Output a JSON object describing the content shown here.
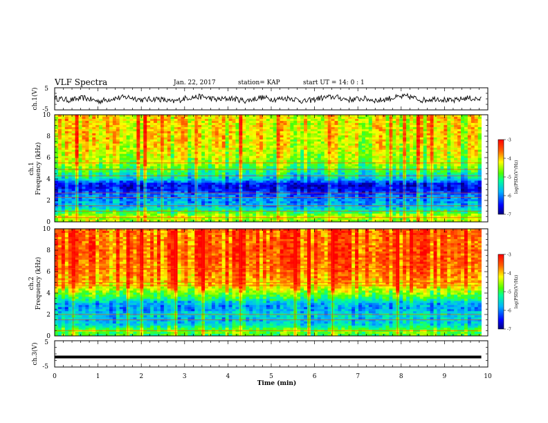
{
  "header": {
    "title": "VLF Spectra",
    "date": "Jan. 22, 2017",
    "station": "station= KAP",
    "start_ut": "start  UT =   14: 0  : 1"
  },
  "chart_data": [
    {
      "type": "line",
      "panel": "ch1-waveform",
      "ylabel": "ch.1(V)",
      "ylim": [
        -5,
        5
      ],
      "yticks": [
        "5",
        "-5"
      ],
      "xlim": [
        0,
        10
      ],
      "series": [
        {
          "values": [
            0.3,
            -0.6,
            0.4,
            -1.1,
            0.2,
            0.8,
            -0.5,
            0.1,
            -1.4,
            0.5,
            1.0,
            -0.3,
            0.2,
            -0.9,
            0.6,
            -0.2,
            0.4,
            -1.2,
            0.3,
            0.9,
            -0.4,
            0.1,
            -0.8,
            0.5,
            1.1,
            -0.6,
            0.2,
            -1.0,
            0.4,
            -0.3
          ]
        }
      ]
    },
    {
      "type": "heatmap",
      "panel": "ch1-spectrogram",
      "ylabel": "ch.1",
      "ylabel2": "Frequency (kHz)",
      "ylim": [
        0,
        10
      ],
      "yticks": [
        "0",
        "2",
        "4",
        "6",
        "8",
        "10"
      ],
      "xlim": [
        0,
        10
      ],
      "colorbar": {
        "ticks": [
          "-3",
          "-4",
          "-5",
          "-6",
          "-7"
        ],
        "label": "log(PSD)(V²/Hz)",
        "range": [
          -7,
          -3
        ]
      },
      "freq_profile_kHz": [
        [
          0,
          -4.6
        ],
        [
          0.5,
          -4.4
        ],
        [
          1.0,
          -5.2
        ],
        [
          1.5,
          -5.8
        ],
        [
          2.0,
          -5.9
        ],
        [
          2.5,
          -6.1
        ],
        [
          3.0,
          -6.5
        ],
        [
          3.5,
          -6.6
        ],
        [
          4.0,
          -5.6
        ],
        [
          4.5,
          -5.3
        ],
        [
          5.0,
          -4.9
        ],
        [
          5.5,
          -4.6
        ],
        [
          6.0,
          -4.5
        ],
        [
          7.0,
          -4.3
        ],
        [
          8.0,
          -4.2
        ],
        [
          9.0,
          -4.2
        ],
        [
          10.0,
          -4.2
        ]
      ],
      "horizontal_lines_kHz": [
        0.4,
        1.0,
        1.5,
        2.3,
        2.7,
        4.3,
        4.9,
        5.5
      ]
    },
    {
      "type": "heatmap",
      "panel": "ch2-spectrogram",
      "ylabel": "ch.2",
      "ylabel2": "Frequency (kHz)",
      "ylim": [
        0,
        10
      ],
      "yticks": [
        "0",
        "2",
        "4",
        "6",
        "8",
        "10"
      ],
      "xlim": [
        0,
        10
      ],
      "colorbar": {
        "ticks": [
          "-3",
          "-4",
          "-5",
          "-6",
          "-7"
        ],
        "label": "log(PSD)(V²/Hz)",
        "range": [
          -7,
          -3
        ]
      },
      "freq_profile_kHz": [
        [
          0,
          -5.0
        ],
        [
          0.5,
          -4.7
        ],
        [
          1.0,
          -5.5
        ],
        [
          1.5,
          -5.7
        ],
        [
          2.0,
          -5.5
        ],
        [
          2.5,
          -5.9
        ],
        [
          3.0,
          -5.8
        ],
        [
          3.5,
          -5.1
        ],
        [
          4.0,
          -4.7
        ],
        [
          4.5,
          -4.2
        ],
        [
          5.0,
          -3.9
        ],
        [
          5.5,
          -3.8
        ],
        [
          6.0,
          -3.7
        ],
        [
          7.0,
          -3.6
        ],
        [
          8.0,
          -3.55
        ],
        [
          9.0,
          -3.6
        ],
        [
          10.0,
          -3.6
        ]
      ],
      "horizontal_lines_kHz": [
        0.5,
        1.5,
        2.0,
        4.7,
        5.0,
        6.3
      ]
    },
    {
      "type": "line",
      "panel": "ch3-waveform",
      "ylabel": "ch.3(V)",
      "ylim": [
        -5,
        5
      ],
      "yticks": [
        "5",
        "-5"
      ],
      "xlim": [
        0,
        10
      ],
      "xticks": [
        "0",
        "1",
        "2",
        "3",
        "4",
        "5",
        "6",
        "7",
        "8",
        "9",
        "10"
      ],
      "xlabel": "Time (min)",
      "series": [
        {
          "values": [
            -1.2,
            -1.2
          ]
        }
      ]
    }
  ],
  "x_data_extent_min": 9.85
}
